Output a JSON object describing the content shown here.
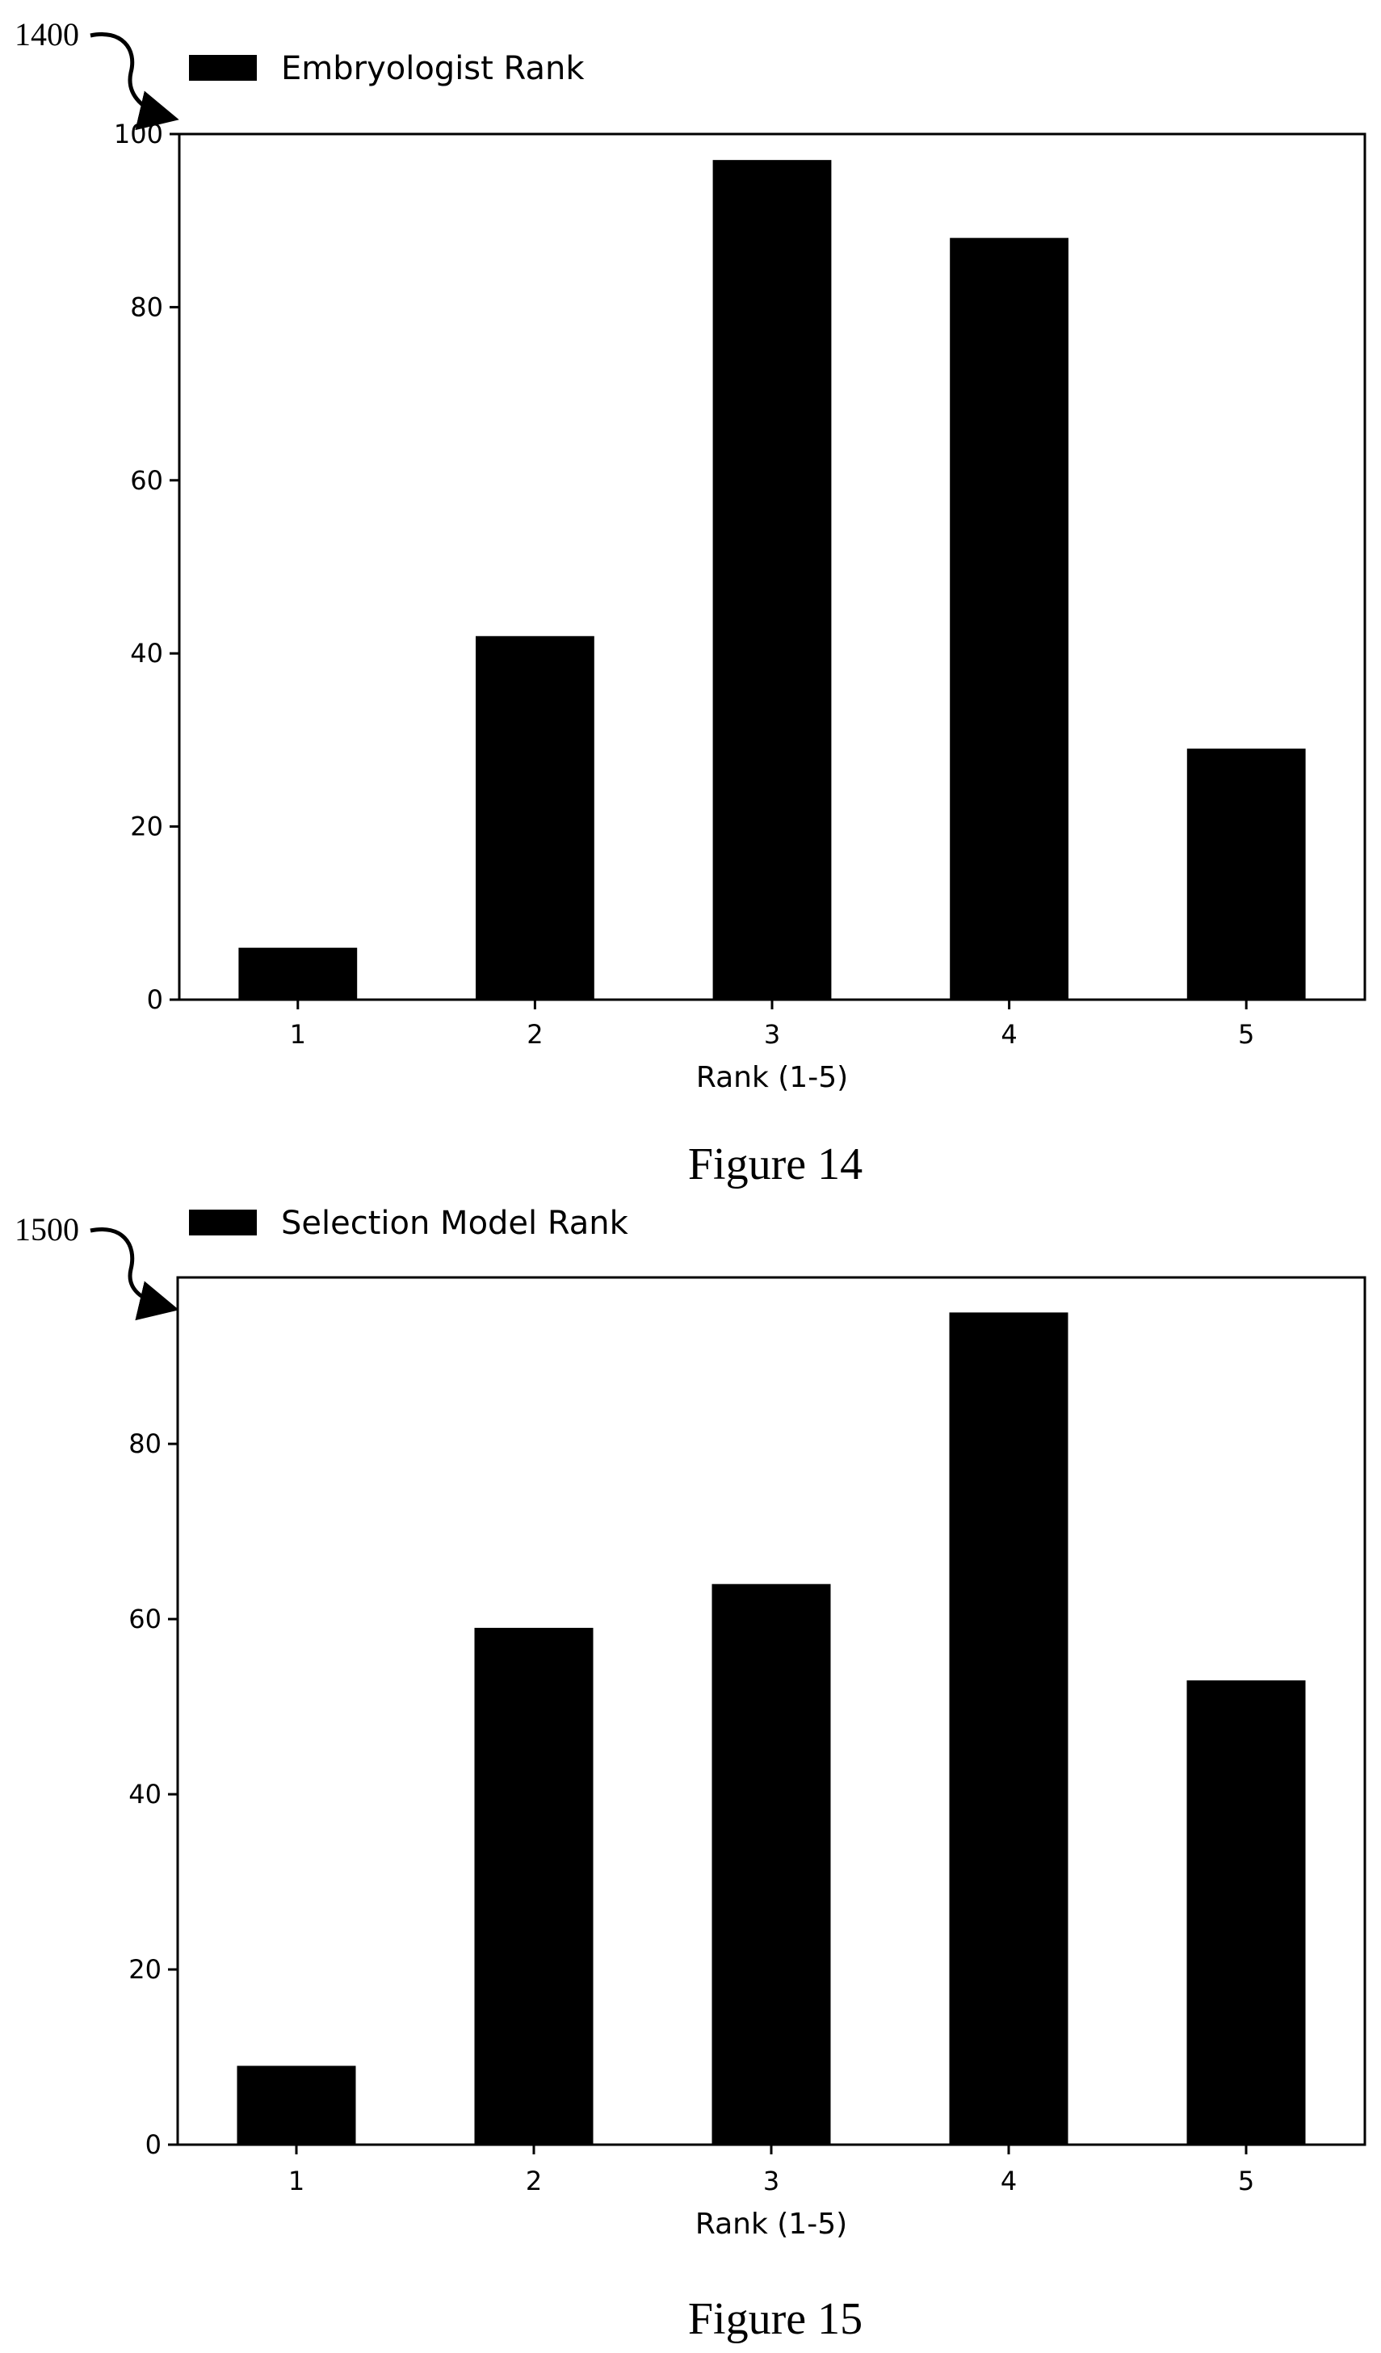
{
  "figures": [
    {
      "ref": "1400",
      "caption": "Figure 14"
    },
    {
      "ref": "1500",
      "caption": "Figure 15"
    }
  ],
  "chart_data": [
    {
      "type": "bar",
      "title": "",
      "categories": [
        "1",
        "2",
        "3",
        "4",
        "5"
      ],
      "series": [
        {
          "name": "Embryologist Rank",
          "values": [
            6,
            42,
            97,
            88,
            29
          ],
          "color": "#000000"
        }
      ],
      "xlabel": "Rank (1-5)",
      "ylabel": "",
      "ylim": [
        0,
        100
      ],
      "yticks": [
        0,
        20,
        40,
        60,
        80,
        100
      ],
      "grid": false,
      "legend": "top-left, above plot"
    },
    {
      "type": "bar",
      "title": "",
      "categories": [
        "1",
        "2",
        "3",
        "4",
        "5"
      ],
      "series": [
        {
          "name": "Selection Model Rank",
          "values": [
            9,
            59,
            64,
            95,
            53
          ],
          "color": "#000000"
        }
      ],
      "xlabel": "Rank (1-5)",
      "ylabel": "",
      "ylim": [
        0,
        99
      ],
      "yticks": [
        0,
        20,
        40,
        60,
        80
      ],
      "grid": false,
      "legend": "top-left, above plot"
    }
  ]
}
